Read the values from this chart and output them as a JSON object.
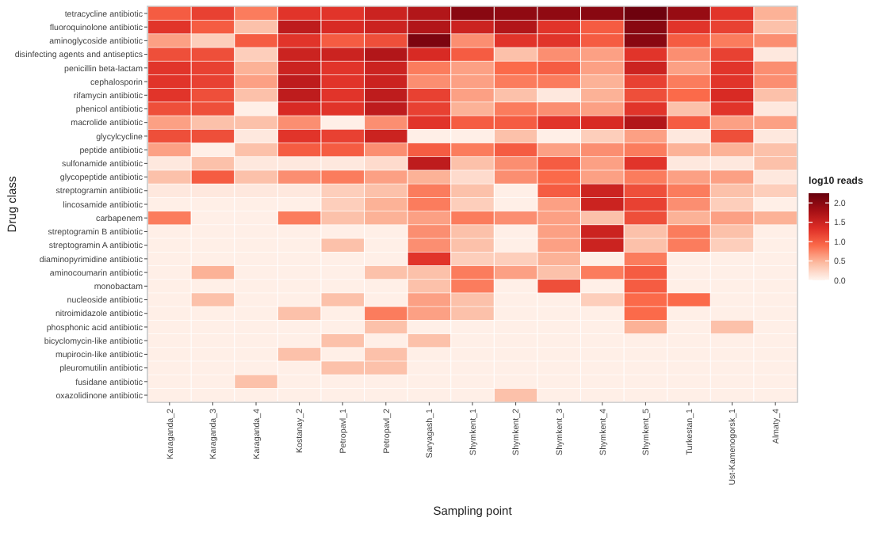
{
  "chart_data": {
    "type": "heatmap",
    "xlabel": "Sampling point",
    "ylabel": "Drug class",
    "clabel": "log10 reads",
    "categories": [
      "Karaganda_2",
      "Karaganda_3",
      "Karaganda_4",
      "Kostanay_2",
      "Petropavl_1",
      "Petropavl_2",
      "Saryagash_1",
      "Shymkent_1",
      "Shymkent_2",
      "Shymkent_3",
      "Shymkent_4",
      "Shymkent_5",
      "Turkestan_1",
      "Ust-Kamenogorsk_1",
      "Almaty_4"
    ],
    "y_categories": [
      "tetracycline antibiotic",
      "fluoroquinolone antibiotic",
      "aminoglycoside antibiotic",
      "disinfecting agents and antiseptics",
      "penicillin beta-lactam",
      "cephalosporin",
      "rifamycin antibiotic",
      "phenicol antibiotic",
      "macrolide antibiotic",
      "glycylcycline",
      "peptide antibiotic",
      "sulfonamide antibiotic",
      "glycopeptide antibiotic",
      "streptogramin antibiotic",
      "lincosamide antibiotic",
      "carbapenem",
      "streptogramin B antibiotic",
      "streptogramin A antibiotic",
      "diaminopyrimidine antibiotic",
      "aminocoumarin antibiotic",
      "monobactam",
      "nucleoside antibiotic",
      "nitroimidazole antibiotic",
      "phosphonic acid antibiotic",
      "bicyclomycin-like antibiotic",
      "mupirocin-like antibiotic",
      "pleuromutilin antibiotic",
      "fusidane antibiotic",
      "oxazolidinone antibiotic"
    ],
    "cells": [
      [
        1.0,
        1.2,
        0.8,
        1.3,
        1.3,
        1.5,
        1.7,
        2.0,
        1.95,
        1.95,
        2.0,
        2.2,
        1.9,
        1.3,
        0.5
      ],
      [
        1.3,
        1.0,
        0.4,
        1.6,
        1.4,
        1.5,
        1.7,
        1.5,
        1.7,
        1.3,
        1.0,
        2.0,
        1.3,
        1.2,
        0.4
      ],
      [
        0.6,
        0.3,
        1.0,
        1.3,
        1.0,
        1.1,
        2.1,
        0.7,
        1.3,
        1.3,
        1.0,
        2.0,
        1.0,
        0.8,
        0.7
      ],
      [
        1.1,
        1.1,
        0.3,
        1.5,
        1.5,
        1.7,
        1.4,
        1.0,
        0.4,
        0.7,
        0.6,
        1.3,
        0.7,
        1.2,
        0.1
      ],
      [
        1.3,
        1.2,
        0.5,
        1.5,
        1.3,
        1.5,
        0.8,
        0.6,
        0.9,
        1.0,
        0.6,
        1.5,
        0.6,
        1.3,
        0.7
      ],
      [
        1.3,
        1.2,
        0.6,
        1.6,
        1.3,
        1.5,
        0.7,
        0.6,
        0.8,
        0.8,
        0.5,
        1.2,
        0.8,
        1.3,
        0.7
      ],
      [
        1.3,
        1.1,
        0.4,
        1.6,
        1.3,
        1.6,
        1.2,
        0.6,
        0.4,
        0.1,
        0.5,
        1.1,
        0.9,
        1.4,
        0.4
      ],
      [
        1.1,
        1.1,
        0.05,
        1.4,
        1.3,
        1.6,
        1.2,
        0.5,
        0.8,
        0.7,
        0.6,
        1.3,
        0.4,
        1.3,
        0.1
      ],
      [
        0.6,
        0.4,
        0.4,
        0.7,
        0.05,
        0.7,
        1.3,
        1.0,
        1.0,
        1.3,
        1.4,
        1.7,
        1.0,
        0.6,
        0.6
      ],
      [
        1.1,
        1.1,
        0.1,
        1.3,
        1.2,
        1.5,
        0.05,
        0.05,
        0.4,
        0.05,
        0.3,
        0.6,
        0.1,
        1.1,
        0.1
      ],
      [
        0.6,
        0.05,
        0.4,
        1.0,
        1.0,
        0.7,
        1.0,
        0.8,
        1.0,
        0.6,
        0.7,
        0.8,
        0.5,
        0.5,
        0.4
      ],
      [
        0.1,
        0.4,
        0.1,
        0.1,
        0.1,
        0.2,
        1.6,
        0.4,
        0.7,
        1.0,
        0.6,
        1.3,
        0.1,
        0.1,
        0.4
      ],
      [
        0.4,
        1.0,
        0.4,
        0.7,
        0.8,
        0.6,
        0.5,
        0.2,
        0.7,
        0.9,
        0.6,
        0.8,
        0.6,
        0.6,
        0.1
      ],
      [
        0.1,
        0.1,
        0.1,
        0.1,
        0.3,
        0.4,
        0.8,
        0.4,
        0.05,
        1.0,
        1.5,
        1.1,
        0.8,
        0.4,
        0.3
      ],
      [
        0.05,
        0.05,
        0.05,
        0.05,
        0.3,
        0.5,
        0.8,
        0.3,
        0.05,
        0.6,
        1.5,
        1.2,
        0.7,
        0.3,
        0.05
      ],
      [
        0.8,
        0.05,
        0.05,
        0.8,
        0.4,
        0.5,
        0.6,
        0.8,
        0.7,
        0.6,
        0.4,
        1.1,
        0.5,
        0.6,
        0.5
      ],
      [
        0.05,
        0.05,
        0.05,
        0.05,
        0.05,
        0.05,
        0.7,
        0.4,
        0.05,
        0.6,
        1.5,
        0.4,
        0.8,
        0.4,
        0.05
      ],
      [
        0.05,
        0.05,
        0.05,
        0.05,
        0.4,
        0.05,
        0.7,
        0.4,
        0.05,
        0.6,
        1.5,
        0.4,
        0.8,
        0.3,
        0.05
      ],
      [
        0.05,
        0.05,
        0.05,
        0.05,
        0.05,
        0.05,
        1.3,
        0.3,
        0.3,
        0.5,
        0.05,
        0.8,
        0.05,
        0.05,
        0.05
      ],
      [
        0.05,
        0.5,
        0.05,
        0.05,
        0.05,
        0.4,
        0.4,
        0.8,
        0.6,
        0.4,
        0.8,
        1.0,
        0.05,
        0.05,
        0.05
      ],
      [
        0.05,
        0.05,
        0.05,
        0.05,
        0.05,
        0.05,
        0.4,
        0.8,
        0.05,
        1.1,
        0.05,
        1.0,
        0.05,
        0.05,
        0.05
      ],
      [
        0.05,
        0.4,
        0.05,
        0.05,
        0.4,
        0.05,
        0.6,
        0.4,
        0.05,
        0.05,
        0.3,
        0.9,
        0.9,
        0.05,
        0.05
      ],
      [
        0.05,
        0.05,
        0.05,
        0.4,
        0.05,
        0.8,
        0.6,
        0.4,
        0.05,
        0.05,
        0.05,
        0.9,
        0.05,
        0.05,
        0.05
      ],
      [
        0.05,
        0.05,
        0.05,
        0.05,
        0.05,
        0.4,
        0.05,
        0.05,
        0.05,
        0.05,
        0.05,
        0.5,
        0.05,
        0.4,
        0.05
      ],
      [
        0.05,
        0.05,
        0.05,
        0.05,
        0.4,
        0.05,
        0.4,
        0.05,
        0.05,
        0.05,
        0.05,
        0.05,
        0.05,
        0.05,
        0.05
      ],
      [
        0.05,
        0.05,
        0.05,
        0.4,
        0.05,
        0.4,
        0.05,
        0.05,
        0.05,
        0.05,
        0.05,
        0.05,
        0.05,
        0.05,
        0.05
      ],
      [
        0.05,
        0.05,
        0.05,
        0.05,
        0.4,
        0.4,
        0.05,
        0.05,
        0.05,
        0.05,
        0.05,
        0.05,
        0.05,
        0.05,
        0.05
      ],
      [
        0.05,
        0.05,
        0.4,
        0.05,
        0.05,
        0.05,
        0.05,
        0.05,
        0.05,
        0.05,
        0.05,
        0.05,
        0.05,
        0.05,
        0.05
      ],
      [
        0.05,
        0.05,
        0.05,
        0.05,
        0.05,
        0.05,
        0.05,
        0.05,
        0.4,
        0.05,
        0.05,
        0.05,
        0.05,
        0.05,
        0.05
      ]
    ],
    "clim": [
      0,
      2.25
    ],
    "cticks": [
      {
        "value": 0,
        "label": "0.0"
      },
      {
        "value": 0.5,
        "label": "0.5"
      },
      {
        "value": 1,
        "label": "1.0"
      },
      {
        "value": 1.5,
        "label": "1.5"
      },
      {
        "value": 2,
        "label": "2.0"
      }
    ]
  }
}
